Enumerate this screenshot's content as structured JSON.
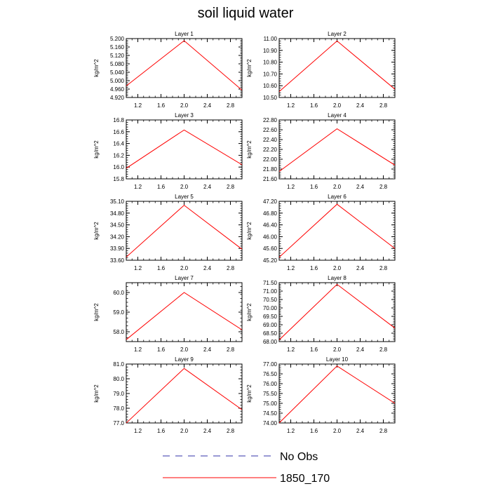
{
  "title": "soil liquid water",
  "colors": {
    "series_1850": "#ff0000",
    "obs": "#3333aa",
    "axis": "#000000"
  },
  "chart_data": [
    {
      "type": "line",
      "title": "Layer 1",
      "ylabel": "kg/m^2",
      "xlim": [
        1.0,
        3.0
      ],
      "xticks": [
        "1.2",
        "1.6",
        "2.0",
        "2.4",
        "2.8"
      ],
      "ylim": [
        4.92,
        5.2
      ],
      "yticks": [
        "4.920",
        "4.960",
        "5.000",
        "5.040",
        "5.080",
        "5.120",
        "5.160",
        "5.200"
      ],
      "series": [
        {
          "name": "1850_170",
          "x": [
            1.0,
            2.0,
            3.0
          ],
          "y": [
            4.975,
            5.19,
            4.955
          ]
        }
      ]
    },
    {
      "type": "line",
      "title": "Layer 2",
      "ylabel": "kg/m^2",
      "xlim": [
        1.0,
        3.0
      ],
      "xticks": [
        "1.2",
        "1.6",
        "2.0",
        "2.4",
        "2.8"
      ],
      "ylim": [
        10.5,
        11.0
      ],
      "yticks": [
        "10.50",
        "10.60",
        "10.70",
        "10.80",
        "10.90",
        "11.00"
      ],
      "series": [
        {
          "name": "1850_170",
          "x": [
            1.0,
            2.0,
            3.0
          ],
          "y": [
            10.55,
            10.98,
            10.57
          ]
        }
      ]
    },
    {
      "type": "line",
      "title": "Layer 3",
      "ylabel": "kg/m^2",
      "xlim": [
        1.0,
        3.0
      ],
      "xticks": [
        "1.2",
        "1.6",
        "2.0",
        "2.4",
        "2.8"
      ],
      "ylim": [
        15.8,
        16.8
      ],
      "yticks": [
        "15.8",
        "16.0",
        "16.2",
        "16.4",
        "16.6",
        "16.8"
      ],
      "series": [
        {
          "name": "1850_170",
          "x": [
            1.0,
            2.0,
            3.0
          ],
          "y": [
            15.98,
            16.63,
            16.04
          ]
        }
      ]
    },
    {
      "type": "line",
      "title": "Layer 4",
      "ylabel": "kg/m^2",
      "xlim": [
        1.0,
        3.0
      ],
      "xticks": [
        "1.2",
        "1.6",
        "2.0",
        "2.4",
        "2.8"
      ],
      "ylim": [
        21.6,
        22.8
      ],
      "yticks": [
        "21.60",
        "21.80",
        "22.00",
        "22.20",
        "22.40",
        "22.60",
        "22.80"
      ],
      "series": [
        {
          "name": "1850_170",
          "x": [
            1.0,
            2.0,
            3.0
          ],
          "y": [
            21.75,
            22.62,
            21.88
          ]
        }
      ]
    },
    {
      "type": "line",
      "title": "Layer 5",
      "ylabel": "kg/m^2",
      "xlim": [
        1.0,
        3.0
      ],
      "xticks": [
        "1.2",
        "1.6",
        "2.0",
        "2.4",
        "2.8"
      ],
      "ylim": [
        33.6,
        35.1
      ],
      "yticks": [
        "33.60",
        "33.90",
        "34.20",
        "34.50",
        "34.80",
        "35.10"
      ],
      "series": [
        {
          "name": "1850_170",
          "x": [
            1.0,
            2.0,
            3.0
          ],
          "y": [
            33.68,
            35.0,
            33.88
          ]
        }
      ]
    },
    {
      "type": "line",
      "title": "Layer 6",
      "ylabel": "kg/m^2",
      "xlim": [
        1.0,
        3.0
      ],
      "xticks": [
        "1.2",
        "1.6",
        "2.0",
        "2.4",
        "2.8"
      ],
      "ylim": [
        45.2,
        47.2
      ],
      "yticks": [
        "45.20",
        "45.60",
        "46.00",
        "46.40",
        "46.80",
        "47.20"
      ],
      "series": [
        {
          "name": "1850_170",
          "x": [
            1.0,
            2.0,
            3.0
          ],
          "y": [
            45.3,
            47.1,
            45.6
          ]
        }
      ]
    },
    {
      "type": "line",
      "title": "Layer 7",
      "ylabel": "kg/m^2",
      "xlim": [
        1.0,
        3.0
      ],
      "xticks": [
        "1.2",
        "1.6",
        "2.0",
        "2.4",
        "2.8"
      ],
      "ylim": [
        57.5,
        60.5
      ],
      "yticks": [
        "58.0",
        "59.0",
        "60.0"
      ],
      "series": [
        {
          "name": "1850_170",
          "x": [
            1.0,
            2.0,
            3.0
          ],
          "y": [
            57.6,
            60.0,
            58.1
          ]
        }
      ]
    },
    {
      "type": "line",
      "title": "Layer 8",
      "ylabel": "kg/m^2",
      "xlim": [
        1.0,
        3.0
      ],
      "xticks": [
        "1.2",
        "1.6",
        "2.0",
        "2.4",
        "2.8"
      ],
      "ylim": [
        68.0,
        71.5
      ],
      "yticks": [
        "68.00",
        "68.50",
        "69.00",
        "69.50",
        "70.00",
        "70.50",
        "71.00",
        "71.50"
      ],
      "series": [
        {
          "name": "1850_170",
          "x": [
            1.0,
            2.0,
            3.0
          ],
          "y": [
            68.1,
            71.4,
            68.8
          ]
        }
      ]
    },
    {
      "type": "line",
      "title": "Layer 9",
      "ylabel": "kg/m^2",
      "xlim": [
        1.0,
        3.0
      ],
      "xticks": [
        "1.2",
        "1.6",
        "2.0",
        "2.4",
        "2.8"
      ],
      "ylim": [
        77.0,
        81.0
      ],
      "yticks": [
        "77.0",
        "78.0",
        "79.0",
        "80.0",
        "81.0"
      ],
      "series": [
        {
          "name": "1850_170",
          "x": [
            1.0,
            2.0,
            3.0
          ],
          "y": [
            77.0,
            80.7,
            77.9
          ]
        }
      ]
    },
    {
      "type": "line",
      "title": "Layer 10",
      "ylabel": "kg/m^2",
      "xlim": [
        1.0,
        3.0
      ],
      "xticks": [
        "1.2",
        "1.6",
        "2.0",
        "2.4",
        "2.8"
      ],
      "ylim": [
        74.0,
        77.0
      ],
      "yticks": [
        "74.00",
        "74.50",
        "75.00",
        "75.50",
        "76.00",
        "76.50",
        "77.00"
      ],
      "series": [
        {
          "name": "1850_170",
          "x": [
            1.0,
            2.0,
            3.0
          ],
          "y": [
            74.0,
            76.9,
            75.0
          ]
        }
      ]
    }
  ],
  "legend": [
    {
      "label": "No Obs",
      "style": "dashed",
      "color": "#3333aa"
    },
    {
      "label": "1850_170",
      "style": "solid",
      "color": "#ff0000"
    }
  ]
}
